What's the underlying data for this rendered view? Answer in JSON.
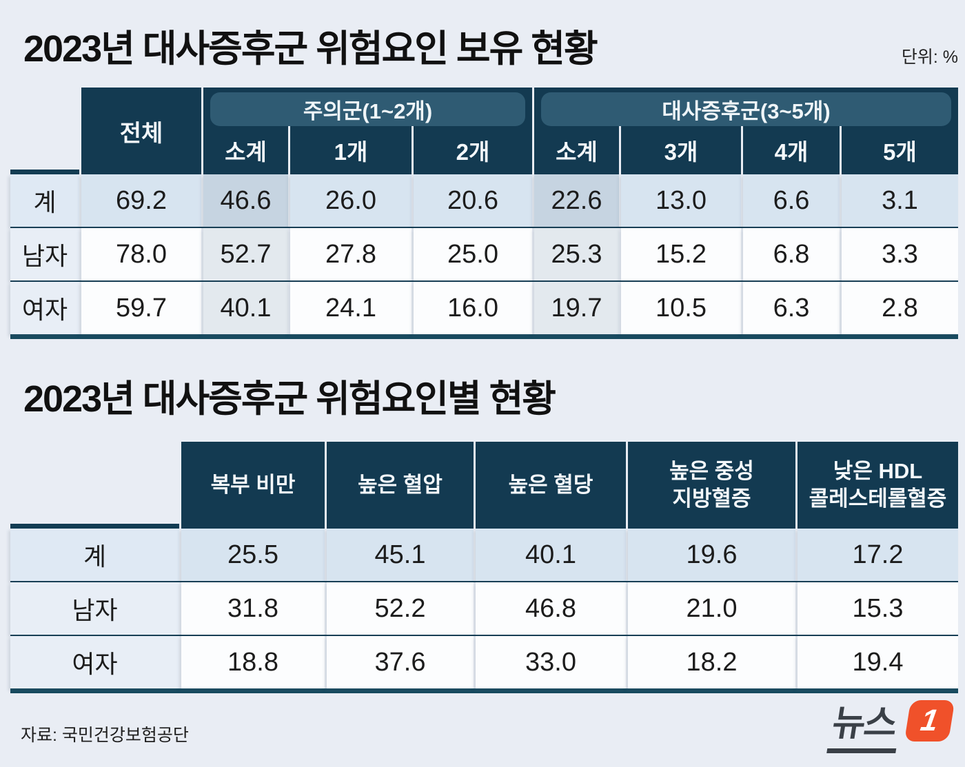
{
  "page": {
    "unit_label": "단위: %",
    "source_label": "자료: 국민건강보험공단",
    "logo": {
      "text": "뉴스",
      "badge": "1"
    },
    "colors": {
      "page_bg": "#E9EDF4",
      "header_navy": "#133A51",
      "group_pill_teal": "#2F5B73",
      "row_highlight_blue": "#D7E4F0",
      "subtotal_tint": "#C6D4E1",
      "logo_orange": "#F0512A"
    }
  },
  "chart_data": [
    {
      "type": "table",
      "title": "2023년 대사증후군 위험요인 보유 현황",
      "unit": "%",
      "first_col_header": "전체",
      "groups": [
        {
          "label": "주의군(1~2개)",
          "subcols": [
            "소계",
            "1개",
            "2개"
          ]
        },
        {
          "label": "대사증후군(3~5개)",
          "subcols": [
            "소계",
            "3개",
            "4개",
            "5개"
          ]
        }
      ],
      "rows": [
        {
          "label": "계",
          "values": [
            "69.2",
            "46.6",
            "26.0",
            "20.6",
            "22.6",
            "13.0",
            "6.6",
            "3.1"
          ]
        },
        {
          "label": "남자",
          "values": [
            "78.0",
            "52.7",
            "27.8",
            "25.0",
            "25.3",
            "15.2",
            "6.8",
            "3.3"
          ]
        },
        {
          "label": "여자",
          "values": [
            "59.7",
            "40.1",
            "24.1",
            "16.0",
            "19.7",
            "10.5",
            "6.3",
            "2.8"
          ]
        }
      ]
    },
    {
      "type": "table",
      "title": "2023년 대사증후군 위험요인별 현황",
      "unit": "%",
      "columns": [
        "복부 비만",
        "높은 혈압",
        "높은 혈당",
        "높은 중성\n지방혈증",
        "낮은 HDL\n콜레스테롤혈증"
      ],
      "rows": [
        {
          "label": "계",
          "values": [
            "25.5",
            "45.1",
            "40.1",
            "19.6",
            "17.2"
          ]
        },
        {
          "label": "남자",
          "values": [
            "31.8",
            "52.2",
            "46.8",
            "21.0",
            "15.3"
          ]
        },
        {
          "label": "여자",
          "values": [
            "18.8",
            "37.6",
            "33.0",
            "18.2",
            "19.4"
          ]
        }
      ]
    }
  ]
}
